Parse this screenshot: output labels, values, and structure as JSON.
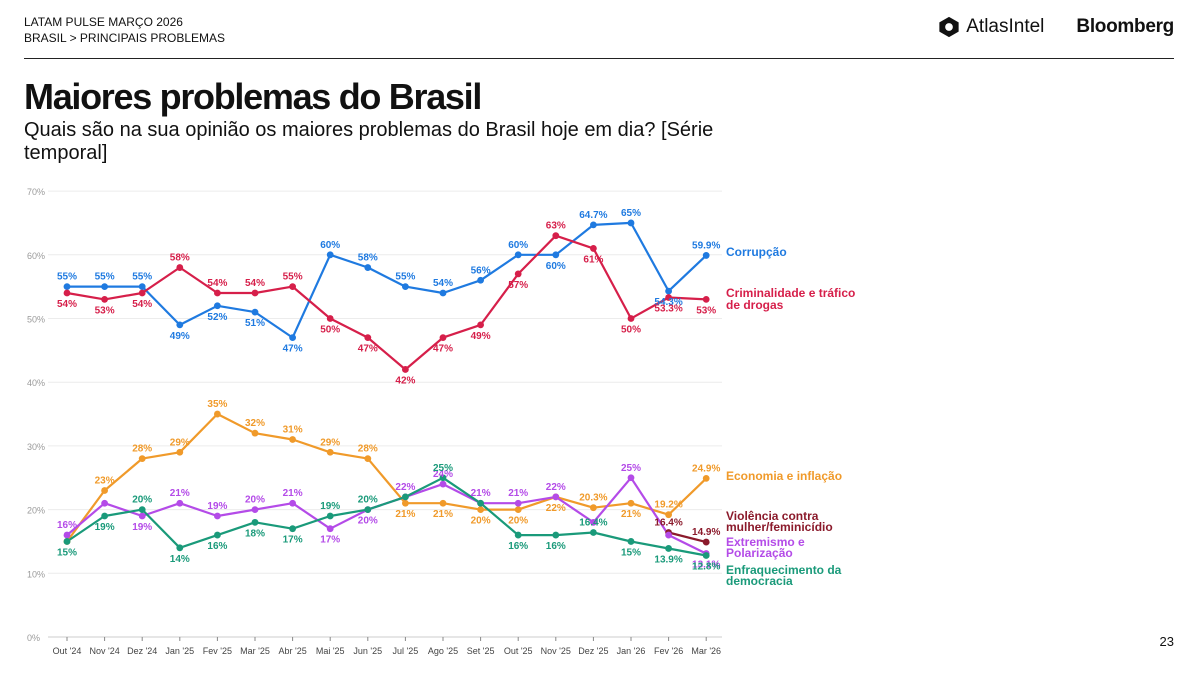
{
  "header": {
    "line1": "LATAM PULSE MARÇO 2026",
    "line2": "BRASIL > PRINCIPAIS PROBLEMAS",
    "atlas_logo": "AtlasIntel",
    "bloomberg_logo": "Bloomberg"
  },
  "title": "Maiores problemas do Brasil",
  "subtitle": "Quais são na sua opinião os maiores problemas do Brasil hoje em dia? [Série temporal]",
  "page_number": "23",
  "chart_data": {
    "type": "line",
    "categories": [
      "Out '24",
      "Nov '24",
      "Dez '24",
      "Jan '25",
      "Fev '25",
      "Mar '25",
      "Abr '25",
      "Mai '25",
      "Jun '25",
      "Jul '25",
      "Ago '25",
      "Set '25",
      "Out '25",
      "Nov '25",
      "Dez '25",
      "Jan '26",
      "Fev '26",
      "Mar '26"
    ],
    "ylim": [
      0,
      70
    ],
    "yticks": [
      0,
      10,
      20,
      30,
      40,
      50,
      60,
      70
    ],
    "ytick_labels": [
      "0%",
      "10%",
      "20%",
      "30%",
      "40%",
      "50%",
      "60%",
      "70%"
    ],
    "grid": true,
    "legend": "right-end labels",
    "series": [
      {
        "name": "Corrupção",
        "color": "#1f7ae0",
        "values": [
          55,
          55,
          55,
          49,
          52,
          51,
          47,
          60,
          58,
          55,
          54,
          56,
          60,
          60,
          64.7,
          65,
          54.3,
          59.9
        ],
        "labels": [
          "55%",
          "55%",
          "55%",
          "49%",
          "52%",
          "51%",
          "47%",
          "60%",
          "58%",
          "55%",
          "54%",
          "56%",
          "60%",
          "60%",
          "64.7%",
          "65%",
          "54.3%",
          "59.9%"
        ]
      },
      {
        "name": "Criminalidade e tráfico de drogas",
        "color": "#d61f4a",
        "values": [
          54,
          53,
          54,
          58,
          54,
          54,
          55,
          50,
          47,
          42,
          47,
          49,
          57,
          63,
          61,
          50,
          53.3,
          53
        ],
        "labels": [
          "54%",
          "53%",
          "54%",
          "58%",
          "54%",
          "54%",
          "55%",
          "50%",
          "47%",
          "42%",
          "47%",
          "49%",
          "57%",
          "63%",
          "61%",
          "50%",
          "53.3%",
          "53%"
        ]
      },
      {
        "name": "Economia e inflação",
        "color": "#f09a2a",
        "values": [
          15,
          23,
          28,
          29,
          35,
          32,
          31,
          29,
          28,
          21,
          21,
          20,
          20,
          22,
          20.3,
          21,
          19.2,
          24.9
        ],
        "labels": [
          "",
          "23%",
          "28%",
          "29%",
          "35%",
          "32%",
          "31%",
          "29%",
          "28%",
          "21%",
          "21%",
          "20%",
          "20%",
          "22%",
          "20.3%",
          "21%",
          "19.2%",
          "24.9%"
        ]
      },
      {
        "name": "Violência contra mulher/feminicídio",
        "color": "#8b1a2b",
        "values": [
          null,
          null,
          null,
          null,
          null,
          null,
          null,
          null,
          null,
          null,
          null,
          null,
          null,
          null,
          null,
          null,
          16.4,
          14.9
        ],
        "labels": [
          "",
          "",
          "",
          "",
          "",
          "",
          "",
          "",
          "",
          "",
          "",
          "",
          "",
          "",
          "",
          "",
          "16.4%",
          "14.9%"
        ]
      },
      {
        "name": "Extremismo e Polarização",
        "color": "#b44be8",
        "values": [
          16,
          21,
          19,
          21,
          19,
          20,
          21,
          17,
          20,
          22,
          24,
          21,
          21,
          22,
          18,
          25,
          16,
          13.1
        ],
        "labels": [
          "16%",
          "",
          "19%",
          "21%",
          "19%",
          "20%",
          "21%",
          "17%",
          "20%",
          "22%",
          "24%",
          "21%",
          "21%",
          "22%",
          "",
          "25%",
          "",
          "13.1%"
        ]
      },
      {
        "name": "Enfraquecimento da democracia",
        "color": "#1a9a7a",
        "values": [
          15,
          19,
          20,
          14,
          16,
          18,
          17,
          19,
          20,
          22,
          25,
          21,
          16,
          16,
          16.4,
          15,
          13.9,
          12.8
        ],
        "labels": [
          "15%",
          "19%",
          "20%",
          "14%",
          "16%",
          "18%",
          "17%",
          "19%",
          "20%",
          "",
          "25%",
          "",
          "16%",
          "16%",
          "16.4%",
          "15%",
          "13.9%",
          "12.8%"
        ]
      }
    ]
  }
}
